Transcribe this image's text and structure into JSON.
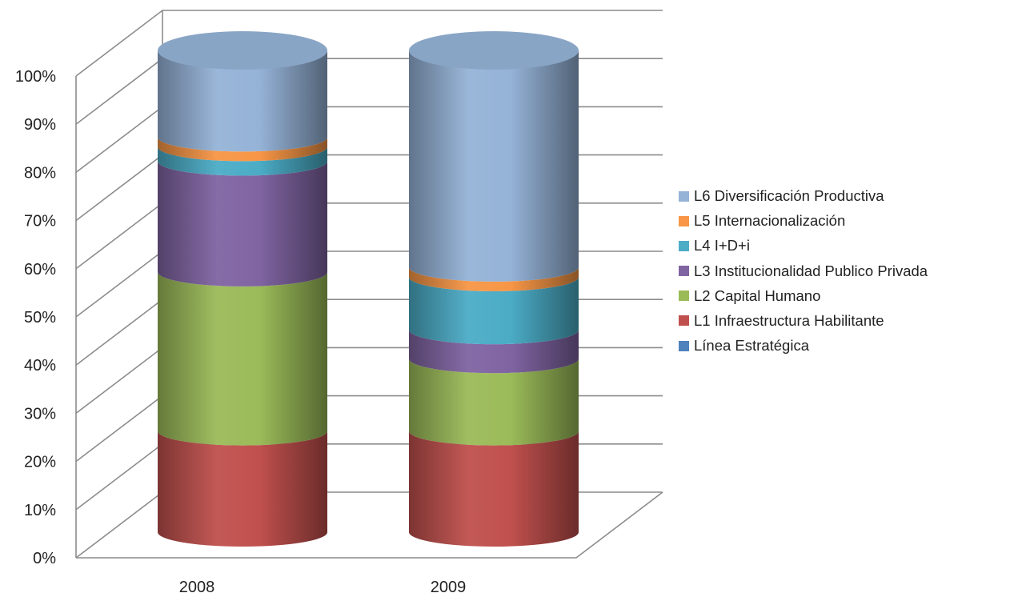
{
  "chart_data": {
    "type": "bar",
    "stacked": true,
    "style": "3d-cylinder",
    "categories": [
      "2008",
      "2009"
    ],
    "y_ticks": [
      "0%",
      "10%",
      "20%",
      "30%",
      "40%",
      "50%",
      "60%",
      "70%",
      "80%",
      "90%",
      "100%"
    ],
    "ylim": [
      0,
      100
    ],
    "grid": true,
    "legend_position": "right",
    "series": [
      {
        "name": "Línea Estratégica",
        "color": "#4F81BD",
        "values": [
          0,
          0
        ]
      },
      {
        "name": "L1 Infraestructura Habilitante",
        "color": "#C0504D",
        "values": [
          21,
          21
        ]
      },
      {
        "name": "L2 Capital Humano",
        "color": "#9BBB59",
        "values": [
          33,
          15
        ]
      },
      {
        "name": "L3 Institucionalidad Publico Privada",
        "color": "#8064A2",
        "values": [
          23,
          6
        ]
      },
      {
        "name": "L4 I+D+i",
        "color": "#4BACC6",
        "values": [
          3,
          11
        ]
      },
      {
        "name": "L5 Internacionalización",
        "color": "#F79646",
        "values": [
          2,
          2
        ]
      },
      {
        "name": "L6 Diversificación Productiva",
        "color": "#95B3D7",
        "values": [
          18,
          45
        ]
      }
    ]
  }
}
